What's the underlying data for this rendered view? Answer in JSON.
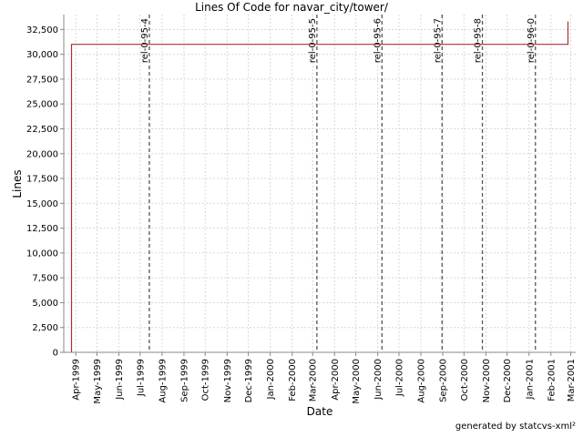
{
  "chart_data": {
    "type": "line",
    "title": "Lines Of Code for navar_city/tower/",
    "xlabel": "Date",
    "ylabel": "Lines",
    "ylim": [
      0,
      34000
    ],
    "yticks": [
      0,
      2500,
      5000,
      7500,
      10000,
      12500,
      15000,
      17500,
      20000,
      22500,
      25000,
      27500,
      30000,
      32500
    ],
    "ytick_labels": [
      "0",
      "2,500",
      "5,000",
      "7,500",
      "10,000",
      "12,500",
      "15,000",
      "17,500",
      "20,000",
      "22,500",
      "25,000",
      "27,500",
      "30,000",
      "32,500"
    ],
    "xlim": [
      "1999-03-15",
      "2001-03-08"
    ],
    "xticks": [
      "1999-04-01",
      "1999-05-01",
      "1999-06-01",
      "1999-07-01",
      "1999-08-01",
      "1999-09-01",
      "1999-10-01",
      "1999-11-01",
      "1999-12-01",
      "2000-01-01",
      "2000-02-01",
      "2000-03-01",
      "2000-04-01",
      "2000-05-01",
      "2000-06-01",
      "2000-07-01",
      "2000-08-01",
      "2000-09-01",
      "2000-10-01",
      "2000-11-01",
      "2000-12-01",
      "2001-01-01",
      "2001-02-01",
      "2001-03-01"
    ],
    "xtick_labels": [
      "Apr-1999",
      "May-1999",
      "Jun-1999",
      "Jul-1999",
      "Aug-1999",
      "Sep-1999",
      "Oct-1999",
      "Nov-1999",
      "Dec-1999",
      "Jan-2000",
      "Feb-2000",
      "Mar-2000",
      "Apr-2000",
      "May-2000",
      "Jun-2000",
      "Jul-2000",
      "Aug-2000",
      "Sep-2000",
      "Oct-2000",
      "Nov-2000",
      "Dec-2000",
      "Jan-2001",
      "Feb-2001",
      "Mar-2001"
    ],
    "grid": true,
    "series": [
      {
        "color": "#b03030",
        "points": [
          {
            "x": "1999-03-26",
            "y": 0
          },
          {
            "x": "1999-03-26",
            "y": 31000
          },
          {
            "x": "2001-02-25",
            "y": 31000
          },
          {
            "x": "2001-02-25",
            "y": 33300
          }
        ]
      }
    ],
    "markers": [
      {
        "label": "rel-0-95-4",
        "x": "1999-07-14"
      },
      {
        "label": "rel-0-95-5",
        "x": "2000-03-07"
      },
      {
        "label": "rel-0-95-6",
        "x": "2000-06-07"
      },
      {
        "label": "rel-0-95-7",
        "x": "2000-08-31"
      },
      {
        "label": "rel-0-95-8",
        "x": "2000-10-27"
      },
      {
        "label": "rel-0-96-0",
        "x": "2001-01-10"
      }
    ]
  },
  "footer": "generated by statcvs-xml²"
}
